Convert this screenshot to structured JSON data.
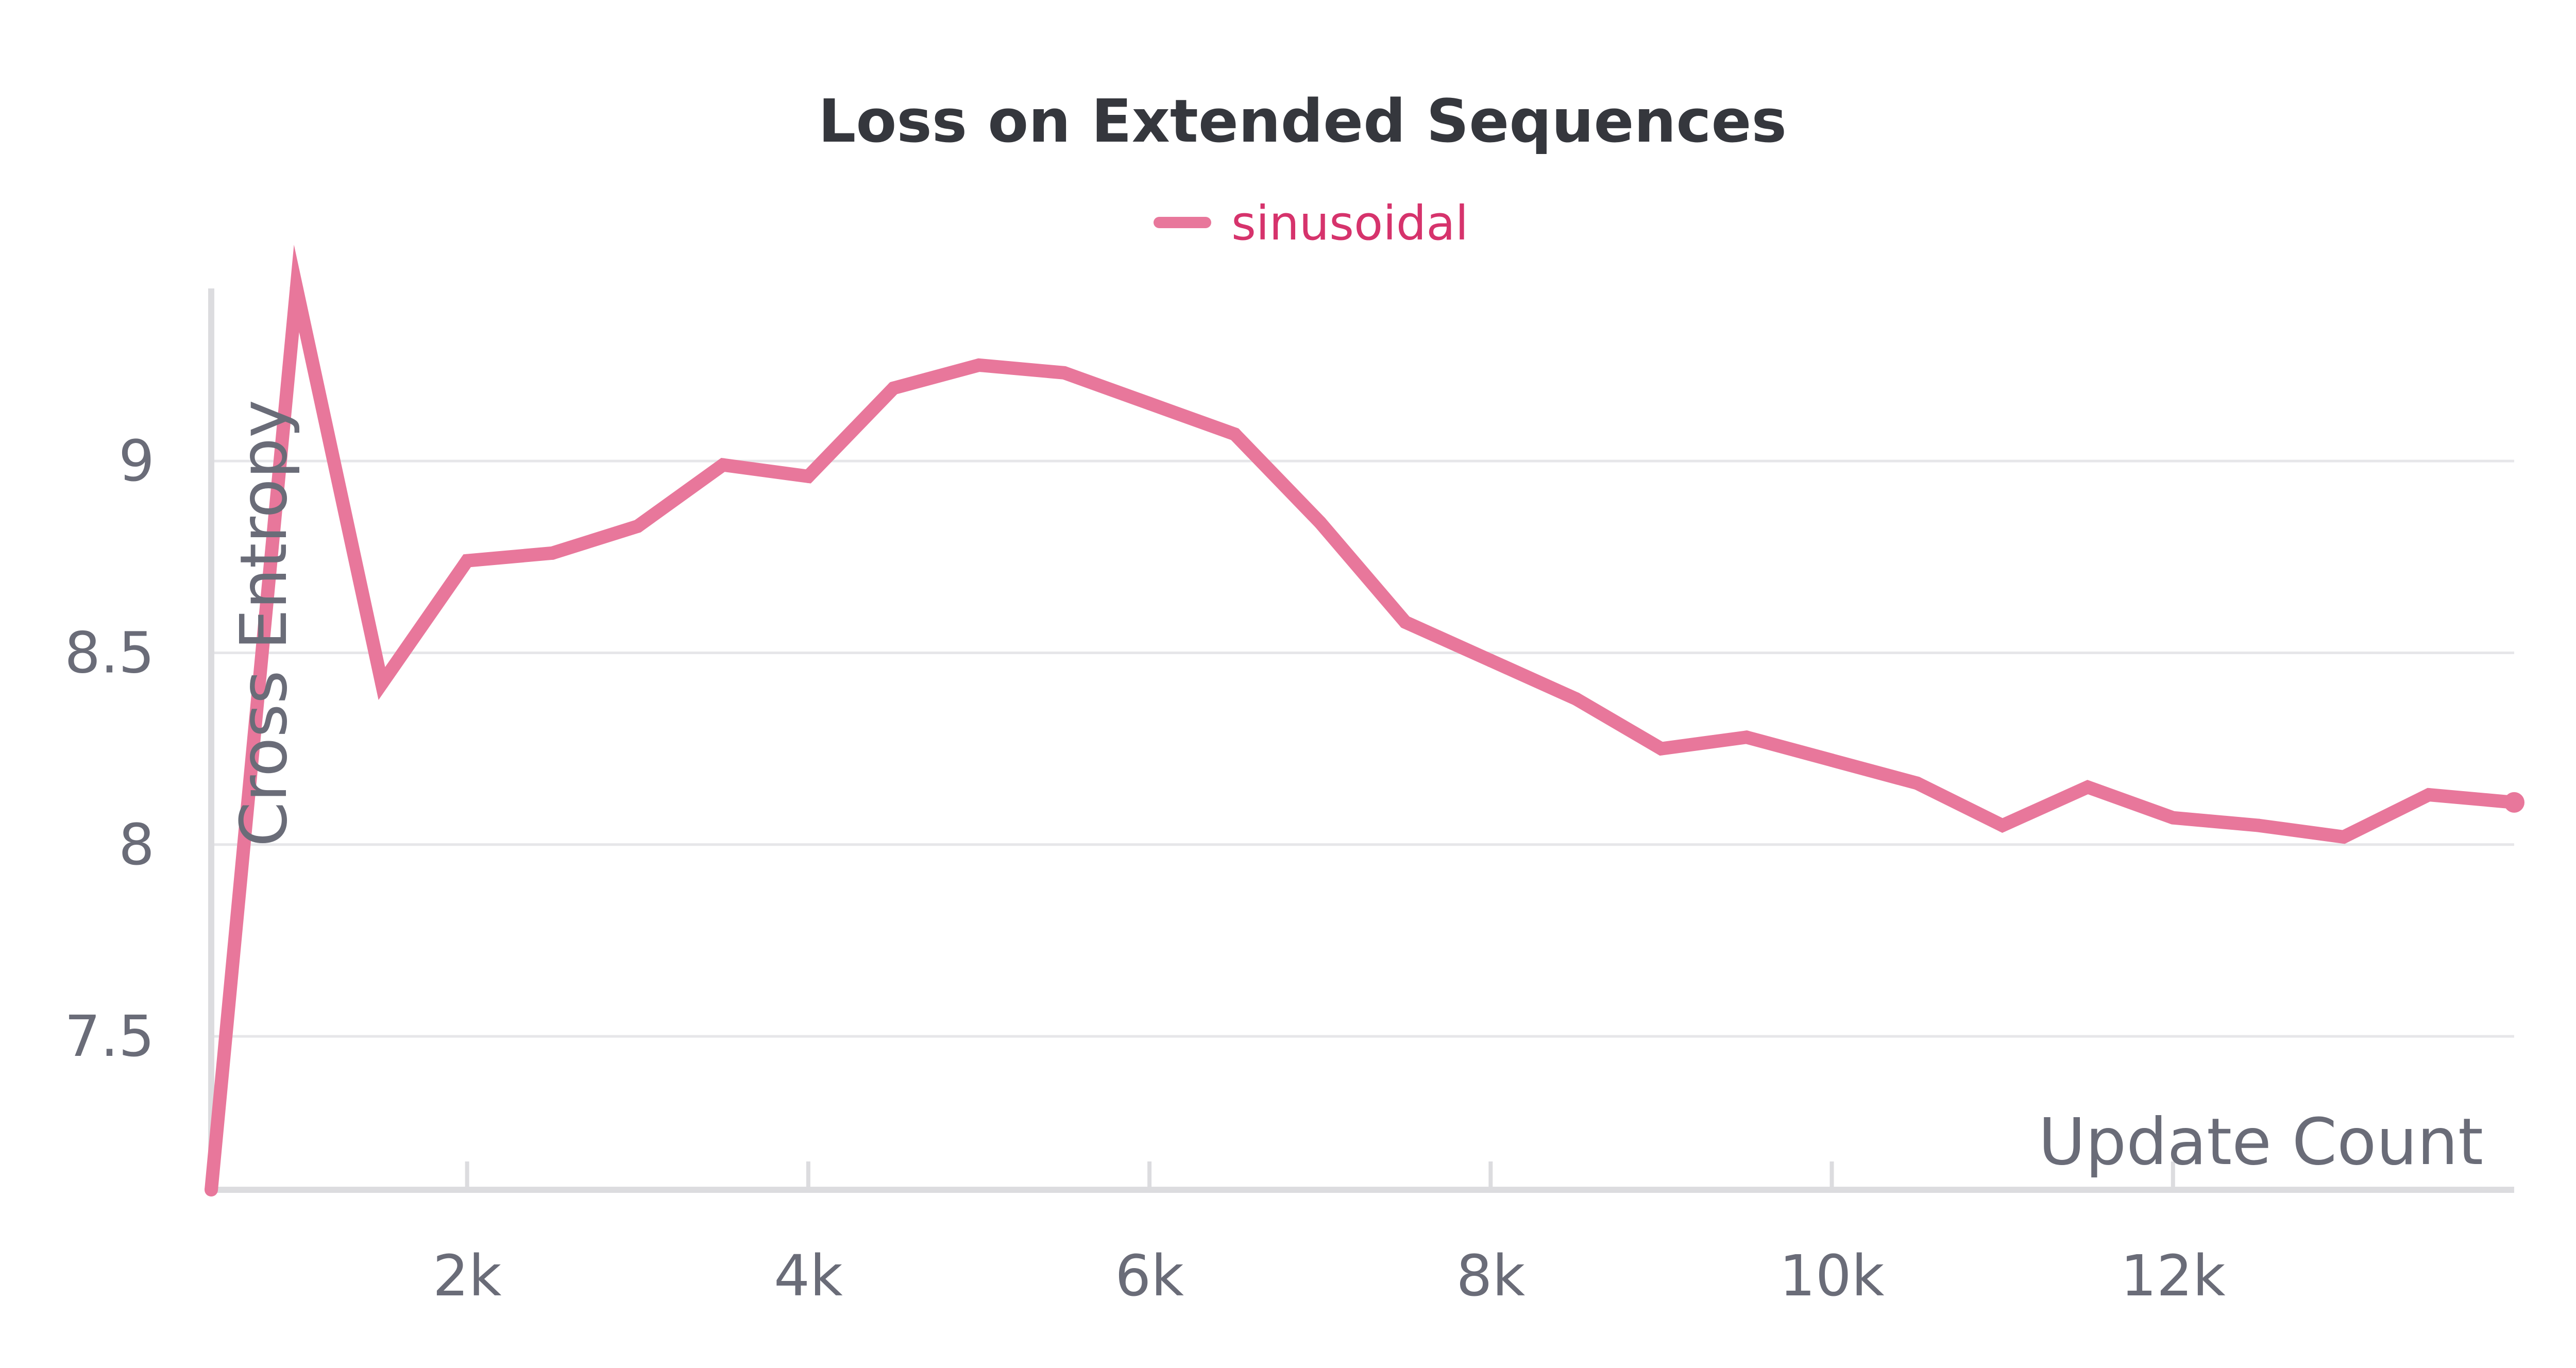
{
  "chart_data": {
    "type": "line",
    "title": "Loss on Extended Sequences",
    "xlabel": "Update Count",
    "ylabel": "Cross Entropy",
    "xlim": [
      500,
      14000
    ],
    "ylim": [
      7.1,
      9.45
    ],
    "x_ticks": [
      2000,
      4000,
      6000,
      8000,
      10000,
      12000
    ],
    "x_tick_labels": [
      "2k",
      "4k",
      "6k",
      "8k",
      "10k",
      "12k"
    ],
    "y_ticks": [
      7.5,
      8,
      8.5,
      9
    ],
    "y_tick_labels": [
      "7.5",
      "8",
      "8.5",
      "9"
    ],
    "grid": true,
    "legend_position": "top-center",
    "series": [
      {
        "name": "sinusoidal",
        "color": "#e8779b",
        "x": [
          500,
          1000,
          1500,
          2000,
          2500,
          3000,
          3500,
          4000,
          4500,
          5000,
          5500,
          6000,
          6500,
          7000,
          7500,
          8000,
          8500,
          9000,
          9500,
          10000,
          10500,
          11000,
          11500,
          12000,
          12500,
          13000,
          13500,
          14000
        ],
        "y": [
          7.1,
          9.45,
          8.42,
          8.74,
          8.76,
          8.83,
          8.99,
          8.96,
          9.19,
          9.25,
          9.23,
          9.15,
          9.07,
          8.84,
          8.58,
          8.48,
          8.38,
          8.25,
          8.28,
          8.22,
          8.16,
          8.05,
          8.15,
          8.07,
          8.05,
          8.02,
          8.13,
          8.11
        ]
      }
    ]
  }
}
